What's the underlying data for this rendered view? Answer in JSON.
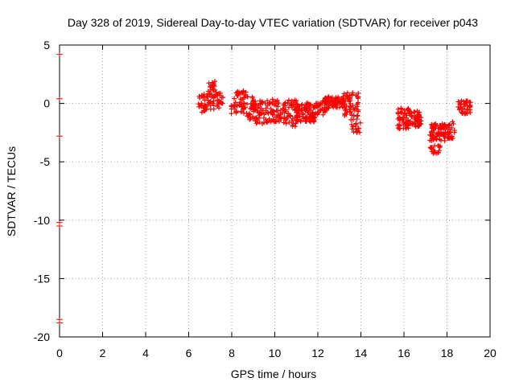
{
  "chart_data": {
    "type": "scatter",
    "title": "Day 328 of 2019, Sidereal Day-to-day VTEC variation (SDTVAR) for receiver p043",
    "xlabel": "GPS time / hours",
    "ylabel": "SDTVAR / TECUs",
    "xlim": [
      0,
      20
    ],
    "ylim": [
      -20,
      5
    ],
    "x_ticks": [
      0,
      2,
      4,
      6,
      8,
      10,
      12,
      14,
      16,
      18,
      20
    ],
    "y_ticks": [
      5,
      0,
      -5,
      -10,
      -15,
      -20
    ],
    "x_tick_labels": [
      "0",
      "2",
      "4",
      "6",
      "8",
      "10",
      "12",
      "14",
      "16",
      "18",
      "20"
    ],
    "y_tick_labels": [
      "5",
      "0",
      "-5",
      "-10",
      "-15",
      "-20"
    ],
    "grid": true,
    "marker": "+",
    "color": "#ff0000",
    "clusters": [
      {
        "x": [
          6.4,
          6.9
        ],
        "y": [
          -0.8,
          0.8
        ],
        "n": 30
      },
      {
        "x": [
          6.9,
          7.3
        ],
        "y": [
          -0.5,
          1.9
        ],
        "n": 40
      },
      {
        "x": [
          7.3,
          7.6
        ],
        "y": [
          -0.4,
          0.9
        ],
        "n": 20
      },
      {
        "x": [
          7.9,
          8.2
        ],
        "y": [
          -1.0,
          0.0
        ],
        "n": 6
      },
      {
        "x": [
          8.1,
          8.7
        ],
        "y": [
          -0.9,
          1.1
        ],
        "n": 45
      },
      {
        "x": [
          8.7,
          9.1
        ],
        "y": [
          -1.4,
          0.6
        ],
        "n": 35
      },
      {
        "x": [
          9.1,
          9.7
        ],
        "y": [
          -1.8,
          0.3
        ],
        "n": 45
      },
      {
        "x": [
          9.7,
          10.3
        ],
        "y": [
          -1.6,
          0.4
        ],
        "n": 45
      },
      {
        "x": [
          10.3,
          11.0
        ],
        "y": [
          -2.0,
          0.3
        ],
        "n": 55
      },
      {
        "x": [
          11.0,
          11.9
        ],
        "y": [
          -1.6,
          0.1
        ],
        "n": 90
      },
      {
        "x": [
          11.9,
          12.4
        ],
        "y": [
          -1.0,
          0.3
        ],
        "n": 30
      },
      {
        "x": [
          12.3,
          13.2
        ],
        "y": [
          -0.4,
          0.6
        ],
        "n": 80
      },
      {
        "x": [
          13.2,
          13.9
        ],
        "y": [
          -1.2,
          1.0
        ],
        "n": 60
      },
      {
        "x": [
          13.5,
          14.0
        ],
        "y": [
          -2.5,
          -1.3
        ],
        "n": 20
      },
      {
        "x": [
          15.7,
          16.3
        ],
        "y": [
          -2.2,
          -0.4
        ],
        "n": 60
      },
      {
        "x": [
          16.3,
          16.8
        ],
        "y": [
          -2.0,
          -0.6
        ],
        "n": 45
      },
      {
        "x": [
          17.2,
          17.9
        ],
        "y": [
          -3.2,
          -1.6
        ],
        "n": 70
      },
      {
        "x": [
          17.8,
          18.2
        ],
        "y": [
          -3.0,
          -1.8
        ],
        "n": 30
      },
      {
        "x": [
          17.2,
          17.7
        ],
        "y": [
          -4.3,
          -3.6
        ],
        "n": 18
      },
      {
        "x": [
          18.2,
          18.4
        ],
        "y": [
          -3.0,
          -1.5
        ],
        "n": 8
      },
      {
        "x": [
          18.5,
          19.1
        ],
        "y": [
          -0.9,
          0.3
        ],
        "n": 40
      }
    ],
    "left_edge_points": [
      {
        "x": 0,
        "y": 4.2
      },
      {
        "x": 0,
        "y": 0.4
      },
      {
        "x": 0,
        "y": -2.8
      },
      {
        "x": 0,
        "y": -10.2
      },
      {
        "x": 0,
        "y": -10.5
      },
      {
        "x": 0,
        "y": -18.5
      },
      {
        "x": 0,
        "y": -18.8
      }
    ]
  }
}
